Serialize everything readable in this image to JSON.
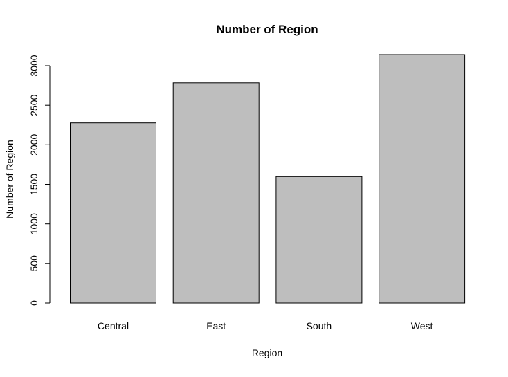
{
  "chart_data": {
    "type": "bar",
    "title": "Number of Region",
    "xlabel": "Region",
    "ylabel": "Number of Region",
    "categories": [
      "Central",
      "East",
      "South",
      "West"
    ],
    "values": [
      2277,
      2783,
      1598,
      3140
    ],
    "ylim": [
      0,
      3000
    ],
    "yticks": [
      0,
      500,
      1000,
      1500,
      2000,
      2500,
      3000
    ],
    "bar_color": "#bebebe",
    "grid": false,
    "legend": "none"
  }
}
